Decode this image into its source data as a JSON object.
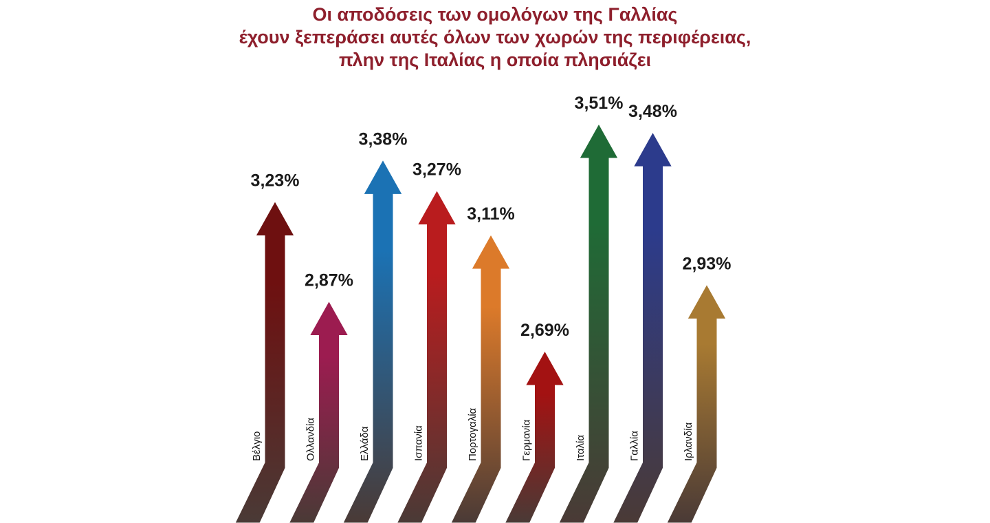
{
  "chart_data": {
    "type": "arrow-bar",
    "title": [
      "Οι αποδόσεις των ομολόγων της Γαλλίας",
      "έχουν ξεπεράσει αυτές όλων των χωρών της περιφέρειας,",
      "πλην της Ιταλίας η οποία πλησιάζει"
    ],
    "categories": [
      "Βέλγιο",
      "Ολλανδία",
      "Ελλάδα",
      "Ισπανία",
      "Πορτογαλία",
      "Γερμανία",
      "Ιταλία",
      "Γαλλία",
      "Ιρλανδία"
    ],
    "values": [
      3.23,
      2.87,
      3.38,
      3.27,
      3.11,
      2.69,
      3.51,
      3.48,
      2.93
    ],
    "value_labels": [
      "3,23%",
      "2,87%",
      "3,38%",
      "3,27%",
      "3,11%",
      "2,69%",
      "3,51%",
      "3,48%",
      "2,93%"
    ],
    "colors": [
      "#6e1010",
      "#9c1c50",
      "#1b72b4",
      "#b91c1e",
      "#dc7a2a",
      "#a31212",
      "#1f6b36",
      "#2c3b8c",
      "#a87a32"
    ]
  }
}
